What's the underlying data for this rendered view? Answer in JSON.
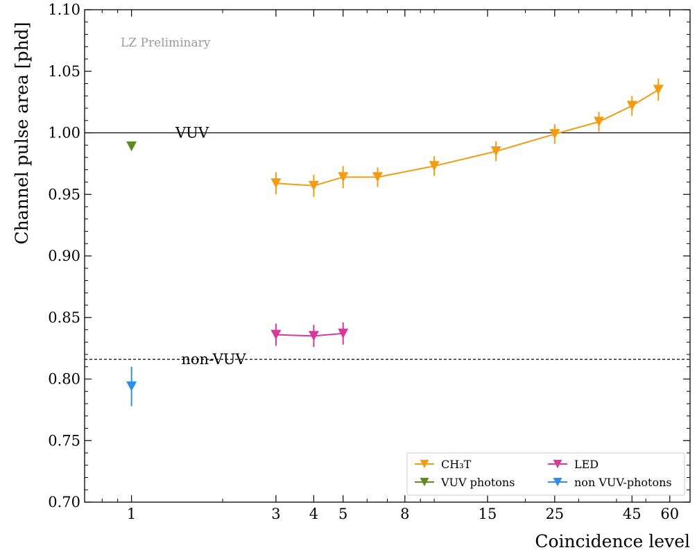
{
  "chart_data": {
    "type": "scatter",
    "xlabel": "Coincidence level",
    "ylabel": "Channel pulse area [phd]",
    "watermark": "LZ Preliminary",
    "xscale": "log",
    "xlim": [
      0.7,
      70
    ],
    "ylim": [
      0.7,
      1.1
    ],
    "xticks": [
      1,
      3,
      4,
      5,
      8,
      15,
      25,
      45,
      60
    ],
    "xtick_labels": [
      "1",
      "3",
      "4",
      "5",
      "8",
      "15",
      "25",
      "45",
      "60"
    ],
    "yticks": [
      0.7,
      0.75,
      0.8,
      0.85,
      0.9,
      0.95,
      1.0,
      1.05,
      1.1
    ],
    "ytick_labels": [
      "0.70",
      "0.75",
      "0.80",
      "0.85",
      "0.90",
      "0.95",
      "1.00",
      "1.05",
      "1.10"
    ],
    "grid": false,
    "legend_position": "bottom-right",
    "reference_lines": [
      {
        "label": "VUV",
        "y": 1.0,
        "style": "solid"
      },
      {
        "label": "non-VUV",
        "y": 0.816,
        "style": "dashed"
      }
    ],
    "series": [
      {
        "name": "CH₃T",
        "color": "#f39c12",
        "marker": "triangle-down",
        "connected": true,
        "x": [
          3,
          4,
          5,
          6.5,
          10,
          16,
          25,
          35,
          45,
          55
        ],
        "y": [
          0.959,
          0.957,
          0.964,
          0.964,
          0.973,
          0.985,
          0.999,
          1.009,
          1.022,
          1.035
        ],
        "yerr": [
          0.009,
          0.009,
          0.009,
          0.008,
          0.008,
          0.008,
          0.008,
          0.008,
          0.008,
          0.009
        ]
      },
      {
        "name": "VUV photons",
        "color": "#5f8a23",
        "marker": "triangle-down",
        "connected": false,
        "x": [
          1
        ],
        "y": [
          0.989
        ],
        "yerr": [
          0.003
        ]
      },
      {
        "name": "LED",
        "color": "#d6389c",
        "marker": "triangle-down",
        "connected": true,
        "x": [
          3,
          4,
          5
        ],
        "y": [
          0.836,
          0.835,
          0.837
        ],
        "yerr": [
          0.009,
          0.009,
          0.009
        ]
      },
      {
        "name": "non VUV-photons",
        "color": "#2e8fe8",
        "marker": "triangle-down",
        "connected": false,
        "x": [
          1
        ],
        "y": [
          0.794
        ],
        "yerr": [
          0.016
        ]
      }
    ]
  }
}
